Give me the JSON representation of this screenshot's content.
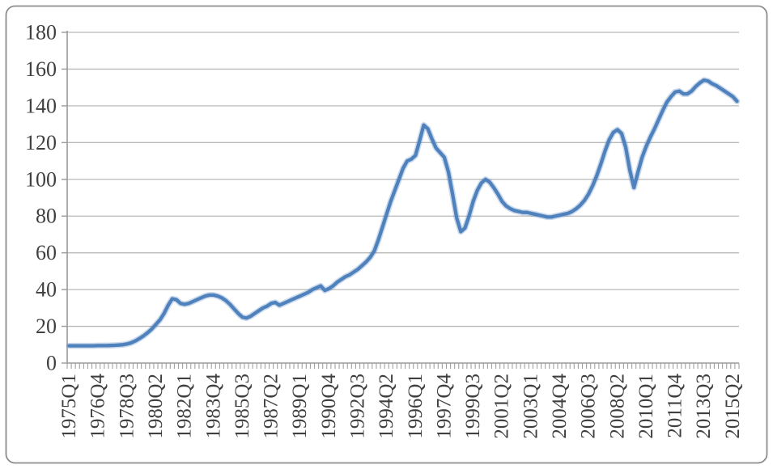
{
  "chart_data": {
    "type": "line",
    "title": "",
    "xlabel": "",
    "ylabel": "",
    "x_start": "1975Q1",
    "frequency": "quarterly",
    "label_every": 7,
    "x_tick_labels": [
      "1975Q1",
      "1976Q4",
      "1978Q3",
      "1980Q2",
      "1982Q1",
      "1983Q4",
      "1985Q3",
      "1987Q2",
      "1989Q1",
      "1990Q4",
      "1992Q3",
      "1994Q2",
      "1996Q1",
      "1997Q4",
      "1999Q3",
      "2001Q2",
      "2003Q1",
      "2004Q4",
      "2006Q3",
      "2008Q2",
      "2010Q1",
      "2011Q4",
      "2013Q3",
      "2015Q2"
    ],
    "y_axis": {
      "min": 0,
      "max": 180,
      "step": 20,
      "tick_labels": [
        "0",
        "20",
        "40",
        "60",
        "80",
        "100",
        "120",
        "140",
        "160",
        "180"
      ]
    },
    "grid": true,
    "legend": "none",
    "series": [
      {
        "name": "index",
        "values": [
          9.4,
          9.4,
          9.4,
          9.4,
          9.4,
          9.4,
          9.4,
          9.5,
          9.5,
          9.5,
          9.6,
          9.7,
          9.8,
          10,
          10.4,
          11,
          12,
          13.3,
          14.8,
          16.5,
          18.5,
          21,
          23.5,
          27,
          31.5,
          35,
          34.5,
          32.5,
          32,
          32.5,
          33.5,
          34.5,
          35.5,
          36.5,
          37,
          37,
          36.5,
          35.5,
          34,
          32,
          29.5,
          27,
          25,
          24.5,
          25.5,
          27,
          28.5,
          30,
          31,
          32.5,
          33,
          31.5,
          32.5,
          33.5,
          34.5,
          35.5,
          36.5,
          37.5,
          38.5,
          40,
          41,
          42,
          39.5,
          40.5,
          42,
          44,
          45.5,
          47,
          48,
          49.5,
          51,
          53,
          55,
          57.5,
          61,
          67,
          74,
          81,
          88,
          94,
          100,
          106,
          110,
          111,
          113,
          121,
          129.5,
          127.5,
          122,
          117,
          114.5,
          112,
          104,
          92,
          79,
          71.5,
          73.5,
          80,
          88,
          94,
          98,
          100,
          98.5,
          95.5,
          92,
          88,
          85.5,
          84,
          83,
          82.5,
          82,
          82,
          81.5,
          81,
          80.5,
          80,
          79.5,
          79.5,
          80,
          80.5,
          81,
          81.5,
          82.5,
          84,
          86,
          88.5,
          92,
          96.5,
          102,
          108.5,
          115.5,
          121.5,
          125.5,
          127,
          125,
          117.5,
          105,
          95.5,
          104,
          112,
          118,
          123,
          127.5,
          132.5,
          137.5,
          142,
          145,
          147.5,
          148,
          146.5,
          146.5,
          148,
          150.5,
          152.5,
          154,
          153.5,
          152,
          151,
          149.5,
          148,
          146.5,
          145,
          142.5
        ]
      }
    ],
    "colors": {
      "line": "#4F81BD",
      "line_halo": "#4F81BD",
      "gridline": "#b9b9b9",
      "axis": "#9a9a9a",
      "tick": "#a0a0a0",
      "label_text": "#3f3f3f",
      "frame_border": "#8c8c8c",
      "background": "#ffffff"
    }
  }
}
